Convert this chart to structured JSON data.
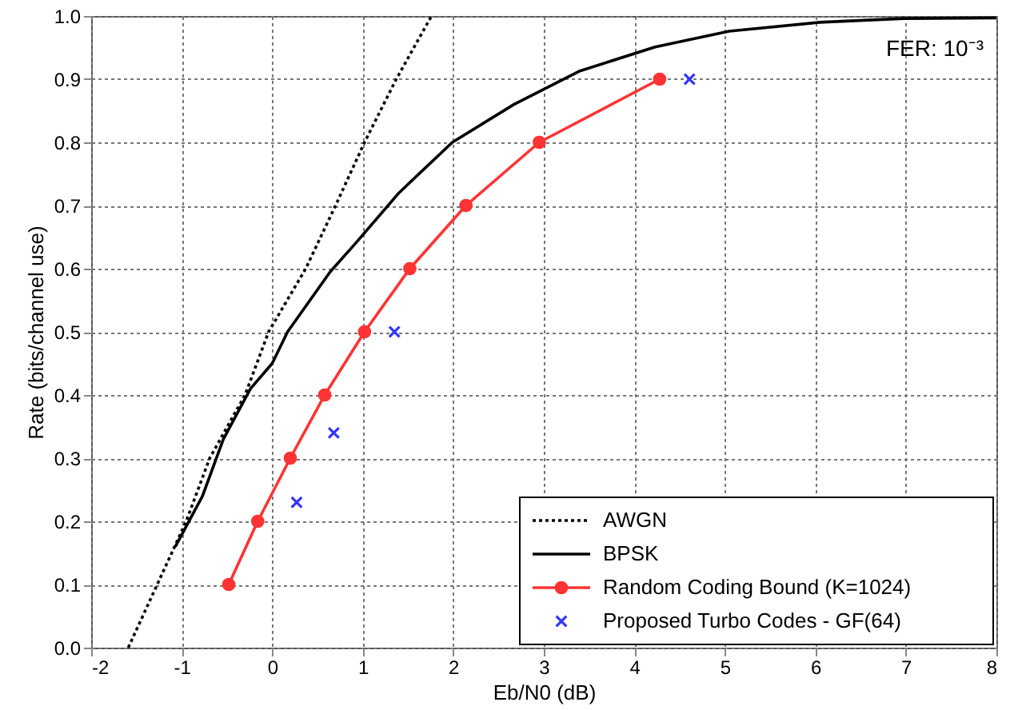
{
  "chart_data": {
    "type": "line",
    "xlabel": "Eb/N0 (dB)",
    "ylabel": "Rate (bits/channel use)",
    "annotations": [
      "FER: 10⁻³"
    ],
    "xlim": [
      -2,
      8
    ],
    "xticks": [
      -2,
      -1,
      0,
      1,
      2,
      3,
      4,
      5,
      6,
      7,
      8
    ],
    "ylim": [
      0,
      1
    ],
    "yticks": [
      {
        "value": 0,
        "label": "0.0"
      },
      0.1,
      0.2,
      0.3,
      0.4,
      0.5,
      0.6,
      0.7,
      0.8,
      0.9,
      {
        "value": 1,
        "label": "1.0"
      }
    ],
    "grid": true,
    "legend": "bottom right",
    "series": [
      {
        "name": "AWGN",
        "type": "line",
        "color": "#000000",
        "line_style": "dotted",
        "marker": "none",
        "x": [
          -1.59,
          -0.95,
          -0.69,
          -0.3,
          -0.04,
          0.37,
          0.7,
          1.02,
          1.37,
          1.76
        ],
        "values": [
          0,
          0.2,
          0.3,
          0.4,
          0.5,
          0.6,
          0.7,
          0.8,
          0.9,
          1.0
        ]
      },
      {
        "name": "BPSK",
        "type": "line",
        "color": "#000000",
        "line_style": "solid",
        "marker": "none",
        "x": [
          -1.07,
          -0.77,
          -0.54,
          -0.24,
          0.0,
          0.17,
          0.64,
          0.92,
          1.4,
          1.99,
          2.67,
          3.4,
          4.23,
          5.05,
          6.05,
          6.98,
          8.0
        ],
        "values": [
          0.16,
          0.24,
          0.33,
          0.41,
          0.45,
          0.5,
          0.595,
          0.64,
          0.72,
          0.8,
          0.86,
          0.913,
          0.951,
          0.976,
          0.99,
          0.996,
          0.997
        ]
      },
      {
        "name": "Random Coding Bound (K=1024)",
        "type": "line",
        "color": "#ff3333",
        "line_style": "solid",
        "marker": "circle",
        "x": [
          -0.48,
          -0.16,
          0.2,
          0.58,
          1.02,
          1.52,
          2.14,
          2.95,
          4.28
        ],
        "values": [
          0.1,
          0.2,
          0.3,
          0.4,
          0.5,
          0.6,
          0.7,
          0.8,
          0.9
        ]
      },
      {
        "name": "Proposed Turbo Codes - GF(64)",
        "type": "scatter",
        "color": "#3333ff",
        "marker": "cross",
        "x": [
          0.27,
          0.68,
          1.35,
          4.61
        ],
        "values": [
          0.23,
          0.34,
          0.5,
          0.9
        ]
      }
    ]
  }
}
